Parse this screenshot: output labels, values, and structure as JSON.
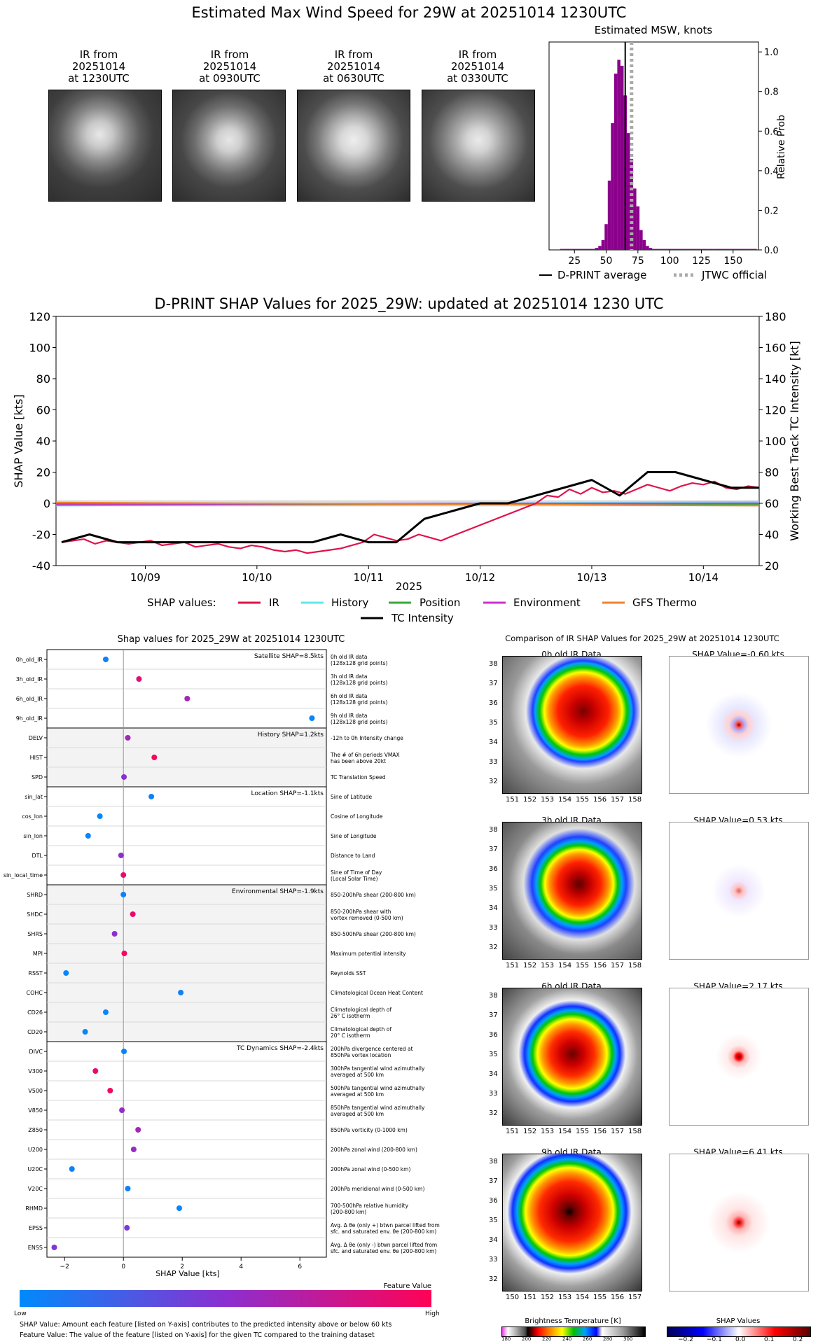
{
  "header": {
    "title": "Estimated Max Wind Speed for 29W at 20251014 1230UTC"
  },
  "ir_panels": [
    {
      "line1": "IR from",
      "line2": "20251014",
      "line3": "at 1230UTC"
    },
    {
      "line1": "IR from",
      "line2": "20251014",
      "line3": "at 0930UTC"
    },
    {
      "line1": "IR from",
      "line2": "20251014",
      "line3": "at 0630UTC"
    },
    {
      "line1": "IR from",
      "line2": "20251014",
      "line3": "at 0330UTC"
    }
  ],
  "msw_legend": {
    "dprint": "D-PRINT average",
    "jtwc": "JTWC official"
  },
  "shap_ts_legend": {
    "label": "SHAP values:",
    "tc": "TC Intensity"
  },
  "beeswarm": {
    "footnote1": "SHAP Value: Amount each feature [listed on Y-axis] contributes to the predicted intensity above or below 60 kts",
    "footnote2": "Feature Value: The value of the feature [listed on Y-axis] for the given TC compared to the training dataset",
    "colorbar_title": "Feature Value",
    "low": "Low",
    "high": "High"
  },
  "ir_comparison": {
    "title": "Comparison of IR SHAP Values for 2025_29W at 20251014 1230UTC",
    "panels": [
      {
        "ir_title": "0h old IR Data",
        "shap_title": "SHAP Value=-0.60 kts",
        "xt": [
          "151",
          "152",
          "153",
          "154",
          "155",
          "156",
          "157",
          "158"
        ]
      },
      {
        "ir_title": "3h old IR Data",
        "shap_title": "SHAP Value=0.53 kts",
        "xt": [
          "151",
          "152",
          "153",
          "154",
          "155",
          "156",
          "157",
          "158"
        ]
      },
      {
        "ir_title": "6h old IR Data",
        "shap_title": "SHAP Value=2.17 kts",
        "xt": [
          "151",
          "152",
          "153",
          "154",
          "155",
          "156",
          "157",
          "158"
        ]
      },
      {
        "ir_title": "9h old IR Data",
        "shap_title": "SHAP Value=6.41 kts",
        "xt": [
          "150",
          "151",
          "152",
          "153",
          "154",
          "155",
          "156",
          "157"
        ]
      }
    ],
    "lat_ticks": [
      "38",
      "37",
      "36",
      "35",
      "34",
      "33",
      "32"
    ],
    "bt_label": "Brightness Temperature [K]",
    "bt_ticks": [
      "180",
      "200",
      "220",
      "240",
      "260",
      "280",
      "300"
    ],
    "sv_label": "SHAP Values",
    "sv_ticks": [
      "−0.2",
      "−0.1",
      "0.0",
      "0.1",
      "0.2"
    ]
  },
  "colors": {
    "ir": "#e0134a",
    "history": "#5ee8ee",
    "position": "#38a838",
    "environment": "#d030d0",
    "gfs": "#f08030",
    "tc": "#000000",
    "purple": "#8b008b",
    "jtwc": "#aaaaaa"
  },
  "chart_data": [
    {
      "type": "bar",
      "title": "Estimated MSW, knots",
      "xlabel": "",
      "ylabel": "Relative Prob",
      "xlim": [
        5,
        170
      ],
      "ylim": [
        0,
        1.05
      ],
      "xticks": [
        25,
        50,
        75,
        100,
        125,
        150
      ],
      "yticks": [
        0.0,
        0.2,
        0.4,
        0.6,
        0.8,
        1.0
      ],
      "bin_width": 2.5,
      "bins": [
        15,
        17.5,
        20,
        22.5,
        25,
        27.5,
        30,
        32.5,
        35,
        37.5,
        40,
        42.5,
        45,
        47.5,
        50,
        52.5,
        55,
        57.5,
        60,
        62.5,
        65,
        67.5,
        70,
        72.5,
        75,
        77.5,
        80,
        82.5,
        85,
        87.5,
        90,
        92.5,
        95,
        97.5,
        100,
        102.5,
        105,
        107.5,
        110,
        112.5,
        115,
        117.5,
        120,
        122.5,
        125,
        127.5,
        130,
        132.5,
        135,
        137.5,
        140,
        142.5,
        145,
        147.5,
        150,
        152.5,
        155,
        157.5,
        160,
        162.5,
        165,
        167.5
      ],
      "values": [
        0.005,
        0.005,
        0.005,
        0.005,
        0.005,
        0.005,
        0.005,
        0.005,
        0.005,
        0.005,
        0.005,
        0.01,
        0.02,
        0.05,
        0.13,
        0.35,
        0.64,
        0.89,
        0.96,
        0.93,
        0.78,
        0.59,
        0.46,
        0.31,
        0.22,
        0.1,
        0.05,
        0.02,
        0.01,
        0.005,
        0.005,
        0.005,
        0.005,
        0.005,
        0.005,
        0.005,
        0.005,
        0.005,
        0.005,
        0.005,
        0.005,
        0.005,
        0.005,
        0.005,
        0.005,
        0.005,
        0.005,
        0.005,
        0.005,
        0.005,
        0.005,
        0.005,
        0.005,
        0.005,
        0.005,
        0.005,
        0.005,
        0.005,
        0.005,
        0.005,
        0.005,
        0.005
      ],
      "dprint_average": 65,
      "jtwc_official": 70,
      "legend": [
        "D-PRINT average",
        "JTWC official"
      ]
    },
    {
      "type": "line",
      "title": "D-PRINT SHAP Values for 2025_29W: updated at 20251014 1230 UTC",
      "xlabel": "2025",
      "ylabel": "SHAP Value [kts]",
      "y2label": "Working Best Track TC Intensity [kt]",
      "xlim": [
        8.2,
        14.5
      ],
      "ylim": [
        -40,
        120
      ],
      "y2lim": [
        20,
        180
      ],
      "xticks": [
        9,
        10,
        11,
        12,
        13,
        14
      ],
      "xtick_labels": [
        "10/09",
        "10/10",
        "10/11",
        "10/12",
        "10/13",
        "10/14"
      ],
      "yticks": [
        -40,
        -20,
        0,
        20,
        40,
        60,
        80,
        100,
        120
      ],
      "y2ticks": [
        20,
        40,
        60,
        80,
        100,
        120,
        140,
        160,
        180
      ],
      "series": [
        {
          "name": "IR",
          "x": [
            8.25,
            8.35,
            8.45,
            8.55,
            8.65,
            8.75,
            8.85,
            8.95,
            9.05,
            9.15,
            9.25,
            9.35,
            9.45,
            9.55,
            9.65,
            9.75,
            9.85,
            9.95,
            10.05,
            10.15,
            10.25,
            10.35,
            10.45,
            10.55,
            10.65,
            10.75,
            10.85,
            10.95,
            11.05,
            11.15,
            11.25,
            11.35,
            11.45,
            11.55,
            11.65,
            11.75,
            12.5,
            12.6,
            12.7,
            12.8,
            12.9,
            13.0,
            13.1,
            13.2,
            13.3,
            13.4,
            13.5,
            13.6,
            13.7,
            13.8,
            13.9,
            14.0,
            14.1,
            14.2,
            14.3,
            14.4,
            14.5
          ],
          "values": [
            -25,
            -24,
            -23,
            -26,
            -24,
            -25,
            -26,
            -25,
            -24,
            -27,
            -26,
            -25,
            -28,
            -27,
            -26,
            -28,
            -29,
            -27,
            -28,
            -30,
            -31,
            -30,
            -32,
            -31,
            -30,
            -29,
            -27,
            -25,
            -20,
            -22,
            -24,
            -23,
            -20,
            -22,
            -24,
            -21,
            0,
            5,
            4,
            9,
            6,
            10,
            7,
            8,
            6,
            9,
            12,
            10,
            8,
            11,
            13,
            12,
            14,
            10,
            9,
            11,
            10
          ]
        },
        {
          "name": "History",
          "x": [
            8.2,
            14.5
          ],
          "values": [
            -1.5,
            1
          ]
        },
        {
          "name": "Position",
          "x": [
            8.2,
            14.5
          ],
          "values": [
            -1,
            -0.5
          ]
        },
        {
          "name": "Environment",
          "x": [
            8.2,
            14.5
          ],
          "values": [
            -0.5,
            0
          ]
        },
        {
          "name": "GFS Thermo",
          "x": [
            8.2,
            14.5
          ],
          "values": [
            0.5,
            -1.5
          ]
        },
        {
          "name": "TC Intensity",
          "axis": "right",
          "x": [
            8.25,
            8.5,
            8.75,
            9.0,
            9.5,
            10.0,
            10.5,
            10.75,
            11.0,
            11.25,
            11.5,
            11.75,
            12.0,
            12.25,
            12.5,
            12.75,
            13.0,
            13.25,
            13.5,
            13.75,
            14.0,
            14.25,
            14.5
          ],
          "values": [
            35,
            40,
            35,
            35,
            35,
            35,
            35,
            40,
            35,
            35,
            50,
            55,
            60,
            60,
            65,
            70,
            75,
            65,
            80,
            80,
            75,
            70,
            70
          ]
        }
      ]
    },
    {
      "type": "scatter",
      "title": "Shap values for 2025_29W at 20251014 1230UTC",
      "xlabel": "SHAP Value [kts]",
      "xlim": [
        -2.6,
        6.9
      ],
      "xticks": [
        -2,
        0,
        2,
        4,
        6
      ],
      "groups": [
        {
          "title": "Satellite SHAP=8.5kts",
          "shaded": false,
          "features": [
            {
              "name": "0h_old_IR",
              "desc1": "0h old IR data",
              "desc2": "(128x128 grid points)",
              "shap": -0.6,
              "value": 0.05
            },
            {
              "name": "3h_old_IR",
              "desc1": "3h old IR data",
              "desc2": "(128x128 grid points)",
              "shap": 0.53,
              "value": 0.85
            },
            {
              "name": "6h_old_IR",
              "desc1": "6h old IR data",
              "desc2": "(128x128 grid points)",
              "shap": 2.17,
              "value": 0.6
            },
            {
              "name": "9h_old_IR",
              "desc1": "9h old IR data",
              "desc2": "(128x128 grid points)",
              "shap": 6.41,
              "value": 0.02
            }
          ]
        },
        {
          "title": "History SHAP=1.2kts",
          "shaded": true,
          "features": [
            {
              "name": "DELV",
              "desc1": "-12h to 0h Intensity change",
              "desc2": "",
              "shap": 0.15,
              "value": 0.6
            },
            {
              "name": "HIST",
              "desc1": "The # of 6h periods VMAX",
              "desc2": "has been above 20kt",
              "shap": 1.05,
              "value": 0.95
            },
            {
              "name": "SPD",
              "desc1": "TC Translation Speed",
              "desc2": "",
              "shap": 0.02,
              "value": 0.5
            }
          ]
        },
        {
          "title": "Location SHAP=-1.1kts",
          "shaded": false,
          "features": [
            {
              "name": "sin_lat",
              "desc1": "Sine of Latitude",
              "desc2": "",
              "shap": 0.95,
              "value": 0.05
            },
            {
              "name": "cos_lon",
              "desc1": "Cosine of Longitude",
              "desc2": "",
              "shap": -0.8,
              "value": 0.02
            },
            {
              "name": "sin_lon",
              "desc1": "Sine of Longitude",
              "desc2": "",
              "shap": -1.2,
              "value": 0.02
            },
            {
              "name": "DTL",
              "desc1": "Distance to Land",
              "desc2": "",
              "shap": -0.08,
              "value": 0.5
            },
            {
              "name": "sin_local_time",
              "desc1": "Sine of Time of Day",
              "desc2": "(Local Solar Time)",
              "shap": 0.0,
              "value": 0.9
            }
          ]
        },
        {
          "title": "Environmental SHAP=-1.9kts",
          "shaded": true,
          "features": [
            {
              "name": "SHRD",
              "desc1": "850-200hPa shear (200-800 km)",
              "desc2": "",
              "shap": 0.0,
              "value": 0.05
            },
            {
              "name": "SHDC",
              "desc1": "850-200hPa shear with",
              "desc2": "vortex removed (0-500 km)",
              "shap": 0.32,
              "value": 0.92
            },
            {
              "name": "SHRS",
              "desc1": "850-500hPa shear (200-800 km)",
              "desc2": "",
              "shap": -0.3,
              "value": 0.5
            },
            {
              "name": "MPI",
              "desc1": "Maximum potential intensity",
              "desc2": "",
              "shap": 0.03,
              "value": 0.95
            },
            {
              "name": "RSST",
              "desc1": "Reynolds SST",
              "desc2": "",
              "shap": -1.95,
              "value": 0.03
            },
            {
              "name": "COHC",
              "desc1": "Climatological Ocean Heat Content",
              "desc2": "",
              "shap": 1.95,
              "value": 0.05
            },
            {
              "name": "CD26",
              "desc1": "Climatological depth of",
              "desc2": "26° C isotherm",
              "shap": -0.6,
              "value": 0.03
            },
            {
              "name": "CD20",
              "desc1": "Climatological depth of",
              "desc2": "20° C isotherm",
              "shap": -1.3,
              "value": 0.03
            }
          ]
        },
        {
          "title": "TC Dynamics SHAP=-2.4kts",
          "shaded": false,
          "features": [
            {
              "name": "DIVC",
              "desc1": "200hPa divergence centered at",
              "desc2": "850hPa vortex location",
              "shap": 0.02,
              "value": 0.03
            },
            {
              "name": "V300",
              "desc1": "300hPa tangential wind azimuthally",
              "desc2": "averaged at 500 km",
              "shap": -0.95,
              "value": 0.9
            },
            {
              "name": "V500",
              "desc1": "500hPa tangential wind azimuthally",
              "desc2": "averaged at 500 km",
              "shap": -0.45,
              "value": 0.95
            },
            {
              "name": "V850",
              "desc1": "850hPa tangential wind azimuthally",
              "desc2": "averaged at 500 km",
              "shap": -0.05,
              "value": 0.55
            },
            {
              "name": "Z850",
              "desc1": "850hPa vorticity (0-1000 km)",
              "desc2": "",
              "shap": 0.5,
              "value": 0.6
            },
            {
              "name": "U200",
              "desc1": "200hPa zonal wind (200-800 km)",
              "desc2": "",
              "shap": 0.35,
              "value": 0.55
            },
            {
              "name": "U20C",
              "desc1": "200hPa zonal wind (0-500 km)",
              "desc2": "",
              "shap": -1.75,
              "value": 0.05
            },
            {
              "name": "V20C",
              "desc1": "200hPa meridional wind (0-500 km)",
              "desc2": "",
              "shap": 0.15,
              "value": 0.05
            },
            {
              "name": "RHMD",
              "desc1": "700-500hPa relative humidity",
              "desc2": "(200-800 km)",
              "shap": 1.9,
              "value": 0.03
            },
            {
              "name": "EPSS",
              "desc1": "Avg. Δ θe (only +) btwn parcel lifted from",
              "desc2": "sfc. and saturated env. θe (200-800 km)",
              "shap": 0.12,
              "value": 0.45
            },
            {
              "name": "ENSS",
              "desc1": "Avg. Δ θe (only -) btwn parcel lifted from",
              "desc2": "sfc. and saturated env. θe (200-800 km)",
              "shap": -2.35,
              "value": 0.45
            }
          ]
        }
      ]
    }
  ]
}
